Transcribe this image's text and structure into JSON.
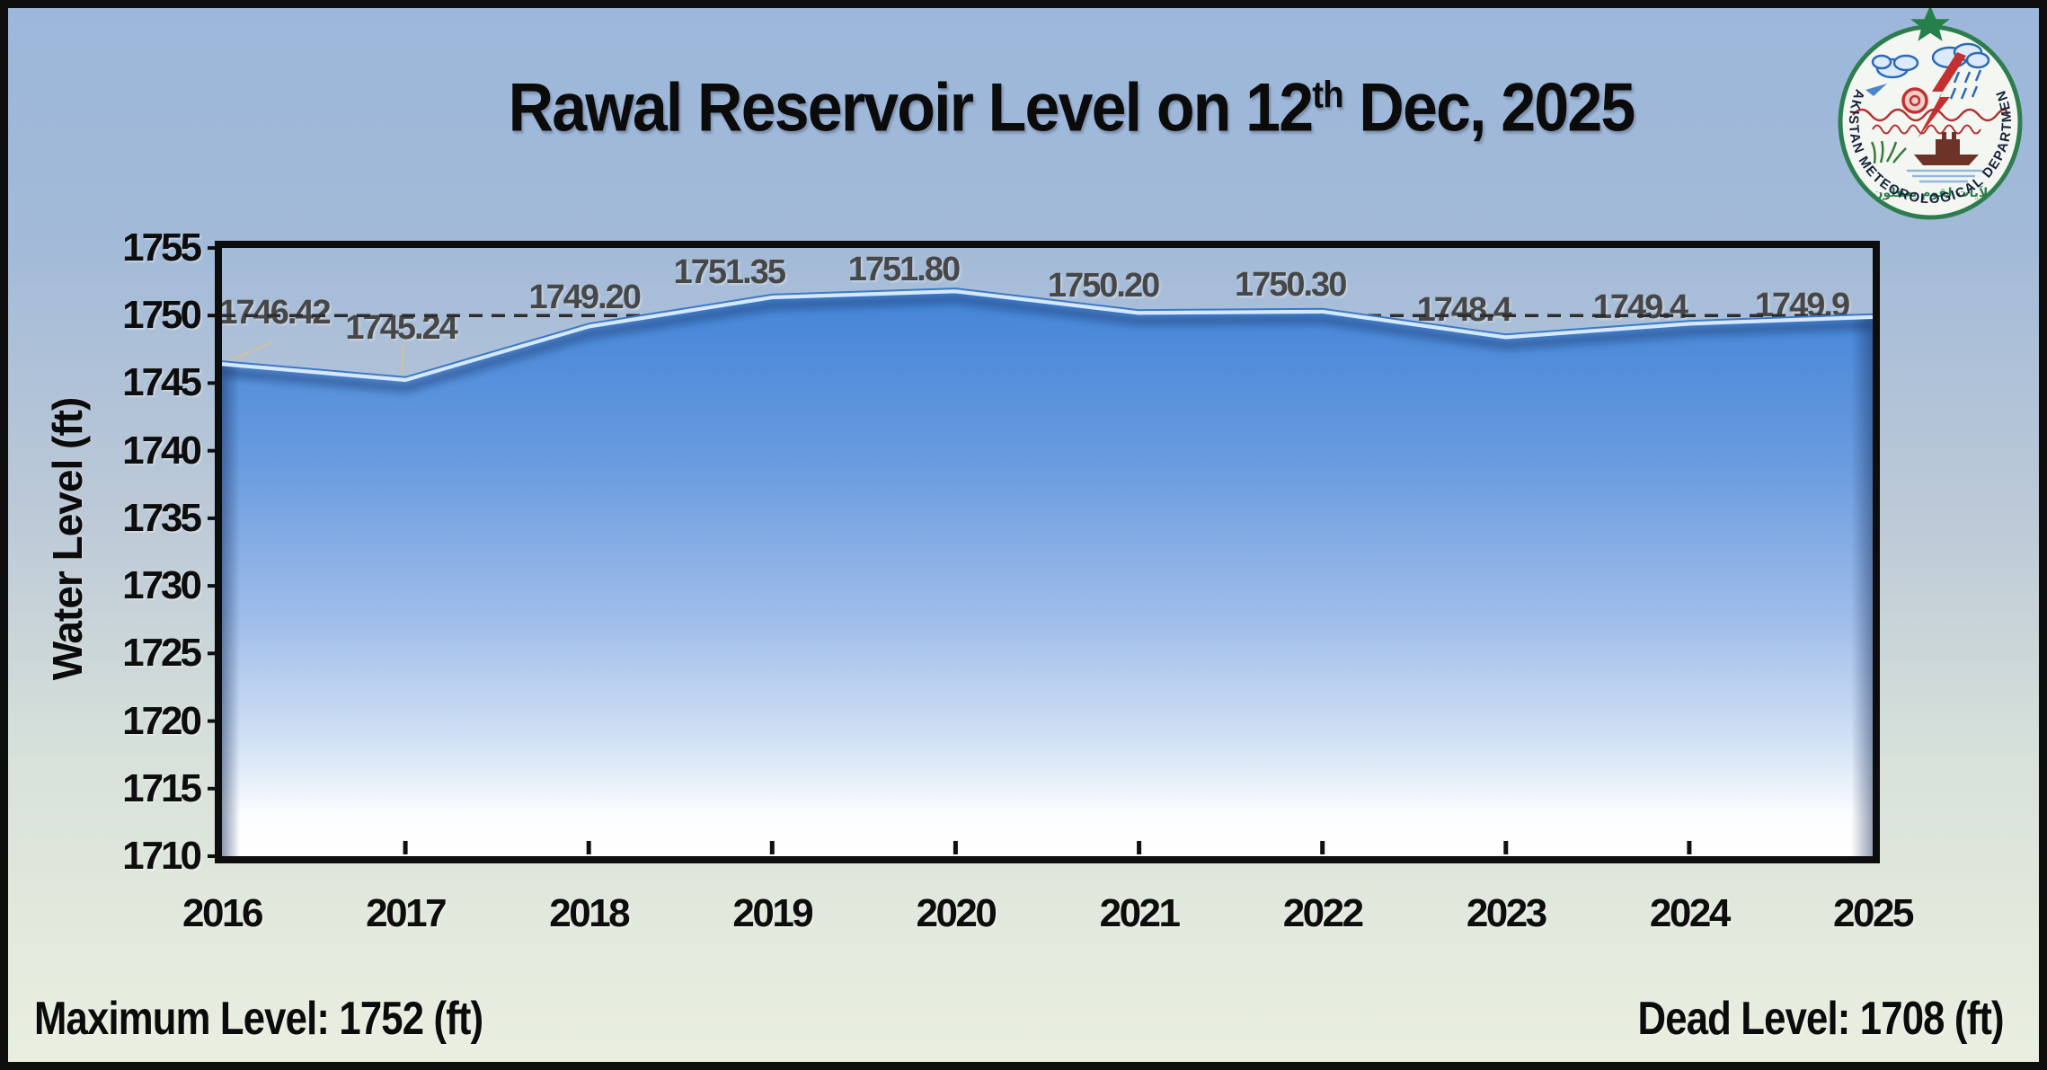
{
  "title": {
    "text_before_sup": "Rawal Reservoir Level on 12",
    "sup": "th",
    "text_after_sup": " Dec, 2025"
  },
  "logo": {
    "organization": "PAKISTAN METEOROLOGICAL DEPARTMENT",
    "motto": "لآيات لقوم يعقلون"
  },
  "chart_data": {
    "type": "area",
    "title": "Rawal Reservoir Level on 12th Dec, 2025",
    "x": [
      "2016",
      "2017",
      "2018",
      "2019",
      "2020",
      "2021",
      "2022",
      "2023",
      "2024",
      "2025"
    ],
    "series": [
      {
        "name": "Reservoir Level",
        "values": [
          1746.42,
          1745.24,
          1749.2,
          1751.35,
          1751.8,
          1750.2,
          1750.3,
          1748.4,
          1749.4,
          1749.9
        ]
      }
    ],
    "point_labels": [
      "1746.42",
      "1745.24",
      "1749.20",
      "1751.35",
      "1751.80",
      "1750.20",
      "1750.30",
      "1748.4",
      "1749.4",
      "1749.9"
    ],
    "ylabel": "Water Level (ft)",
    "xlabel": "",
    "ylim": [
      1710,
      1755
    ],
    "ytick_step": 5,
    "reference_level": 1750,
    "grid": false,
    "legend": false,
    "annotations": {
      "maximum_level_ft": 1752,
      "dead_level_ft": 1708
    }
  },
  "footer": {
    "maximum_level": "Maximum Level: 1752 (ft)",
    "dead_level": "Dead Level: 1708 (ft)"
  },
  "colors": {
    "area_top": "#4384D7",
    "area_bottom": "#FFFFFF",
    "area_highlight": "#D6E8FB",
    "area_edge": "#3C79C6",
    "dashed_line": "#2D2D2D",
    "data_label": "#474747",
    "axis_text": "#0D0D0D",
    "leader_line": "#CCC0A8",
    "background_top": "#9CB7DB",
    "background_bottom": "#EAEFE0",
    "frame": "#0D0D0D",
    "logo_green": "#2E7D4F",
    "logo_red": "#C03030",
    "logo_blue": "#2B6CB8"
  }
}
